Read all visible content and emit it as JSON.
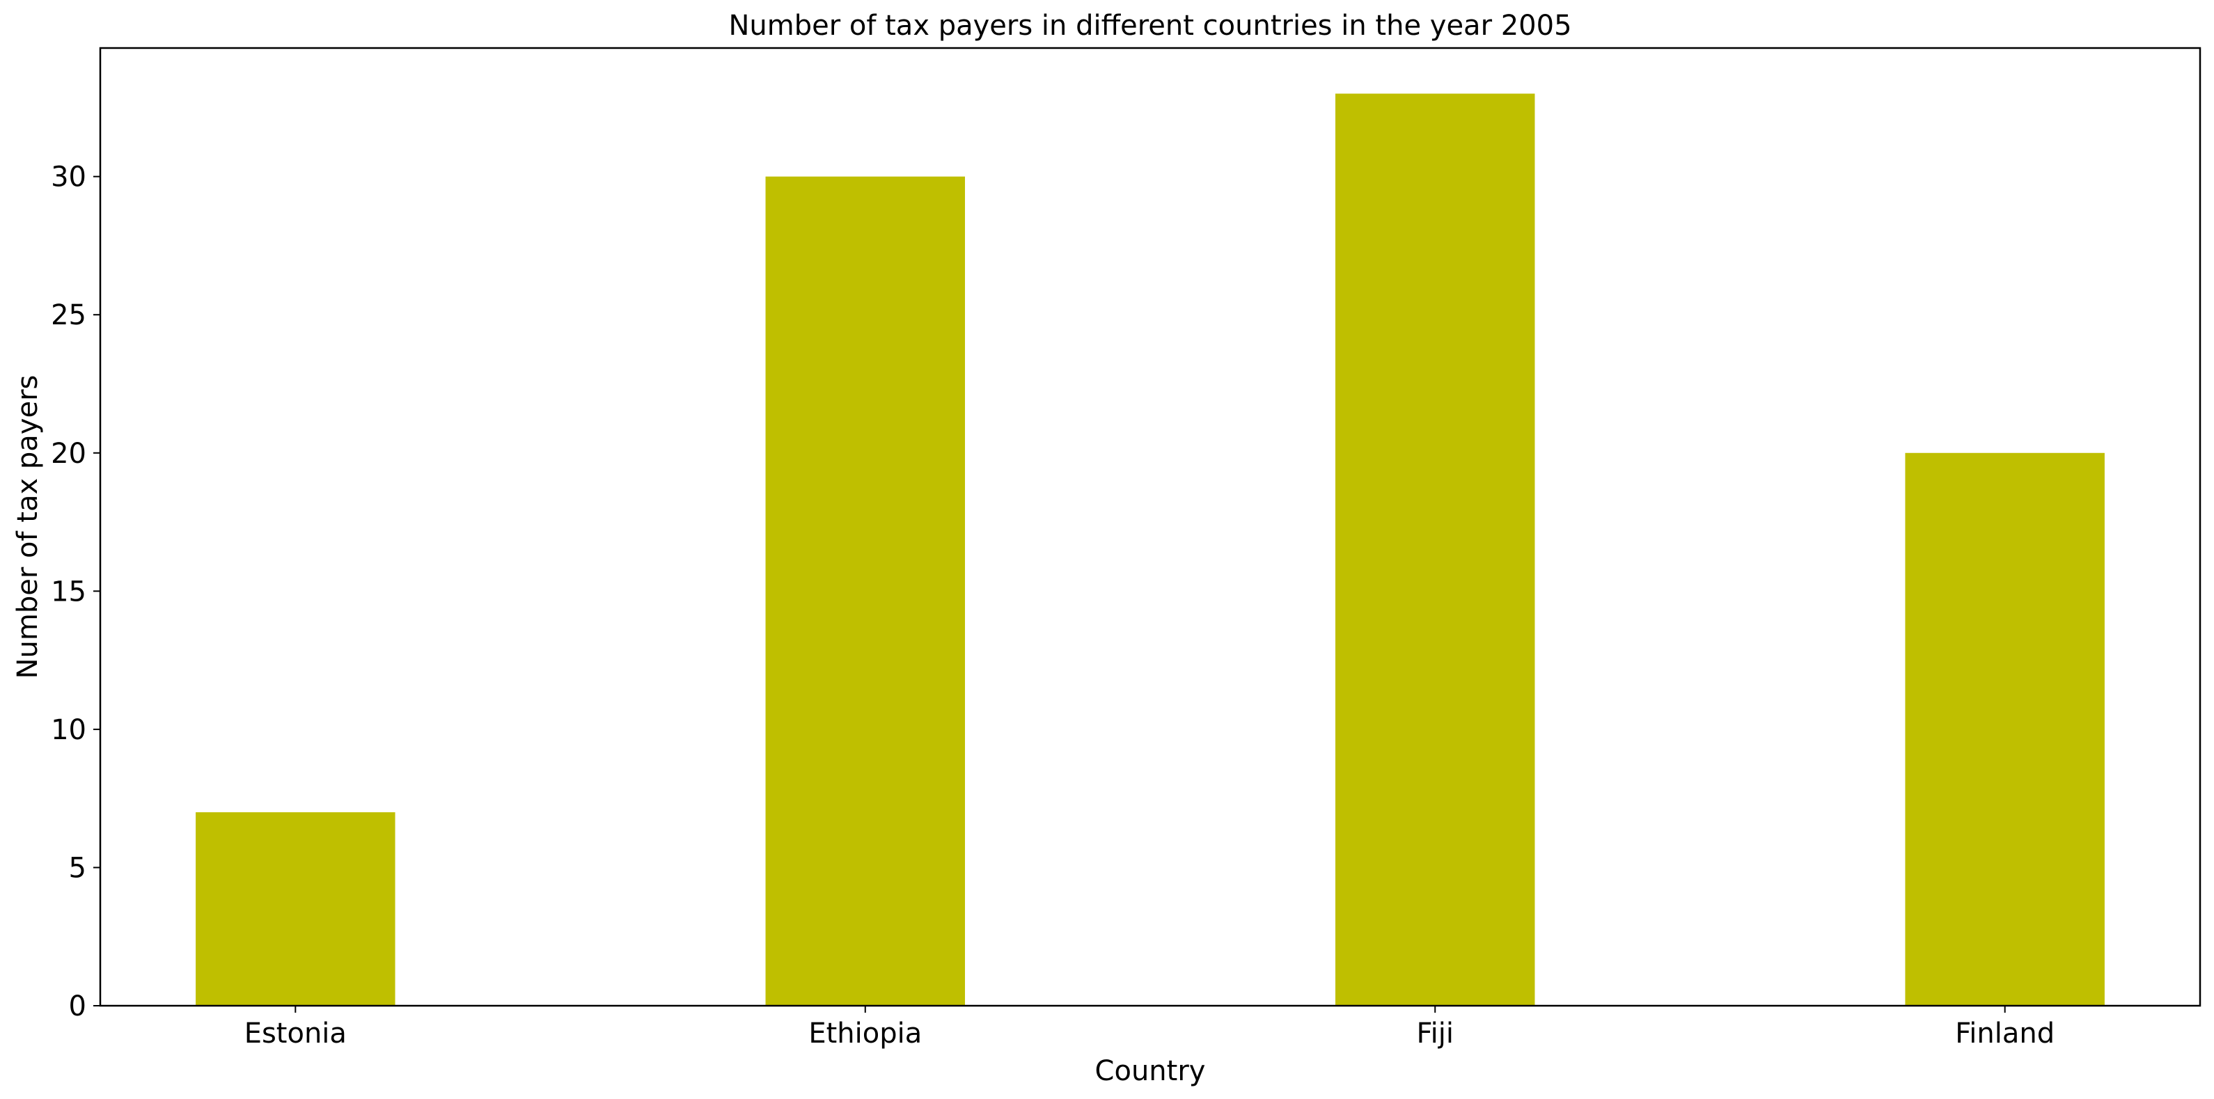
{
  "chart_data": {
    "type": "bar",
    "title": "Number of tax payers in different countries in the year 2005",
    "xlabel": "Country",
    "ylabel": "Number of tax payers",
    "categories": [
      "Estonia",
      "Ethiopia",
      "Fiji",
      "Finland"
    ],
    "values": [
      7,
      30,
      33,
      20
    ],
    "ylim": [
      0,
      34.65
    ],
    "yticks": [
      0,
      5,
      10,
      15,
      20,
      25,
      30
    ],
    "bar_color": "#bfbf00",
    "grid": false,
    "legend": "none"
  }
}
